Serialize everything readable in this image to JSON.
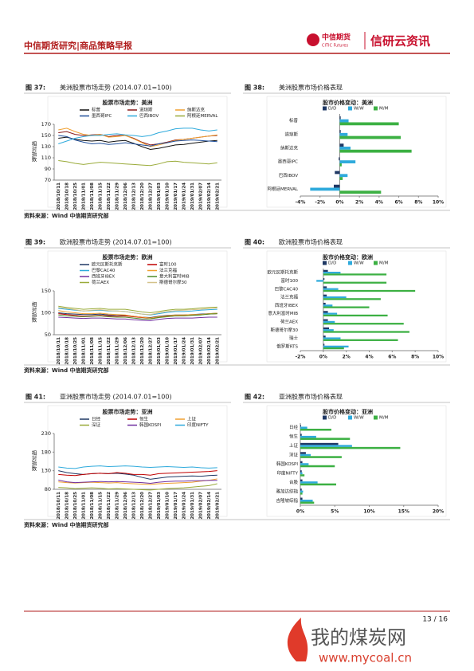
{
  "header": {
    "title": "中信期货研究|商品策略早报",
    "logo": "中信期货",
    "logo_en": "CITIC Futures",
    "brand": "信研云资讯"
  },
  "footer": {
    "page": "13 / 16"
  },
  "watermark": {
    "text": "我的煤炭网",
    "url": "www.mycoal.cn"
  },
  "chart_data": [
    {
      "type": "line",
      "figure_label": "图 37:",
      "caption": "美洲股票市场走势 (2014.07.01=100)",
      "title": "股票市场走势：美洲",
      "ylabel": "相对指数",
      "source": "资料来源：Wind 中信期货研究部",
      "categories": [
        "2018/10/11",
        "2018/10/18",
        "2018/10/25",
        "2018/11/01",
        "2018/11/08",
        "2018/11/15",
        "2018/11/22",
        "2018/11/29",
        "2018/12/06",
        "2018/12/13",
        "2018/12/20",
        "2018/12/27",
        "2019/01/03",
        "2019/01/10",
        "2019/01/17",
        "2019/01/24",
        "2019/01/31",
        "2019/02/07",
        "2019/02/14",
        "2019/02/21"
      ],
      "ylim": [
        70,
        170
      ],
      "yticks": [
        70,
        90,
        110,
        130,
        150,
        170
      ],
      "series": [
        {
          "name": "标普",
          "color": "#111111",
          "values": [
            145,
            147,
            143,
            141,
            140,
            141,
            138,
            140,
            141,
            136,
            130,
            125,
            127,
            130,
            133,
            134,
            136,
            138,
            140,
            141
          ]
        },
        {
          "name": "道琼斯",
          "color": "#8b1a1a",
          "values": [
            155,
            157,
            152,
            150,
            151,
            152,
            148,
            150,
            150,
            145,
            138,
            133,
            135,
            138,
            142,
            143,
            145,
            147,
            149,
            150
          ]
        },
        {
          "name": "纳斯达克",
          "color": "#f0a030",
          "values": [
            160,
            163,
            157,
            152,
            150,
            152,
            147,
            148,
            150,
            144,
            137,
            130,
            133,
            137,
            141,
            143,
            145,
            147,
            149,
            151
          ]
        },
        {
          "name": "墨西哥IPC",
          "color": "#1f4e9a",
          "values": [
            150,
            148,
            142,
            138,
            135,
            136,
            134,
            135,
            137,
            135,
            133,
            131,
            135,
            137,
            140,
            141,
            142,
            141,
            140,
            139
          ]
        },
        {
          "name": "巴西IBOV",
          "color": "#2eaadc",
          "values": [
            135,
            140,
            145,
            148,
            150,
            150,
            152,
            153,
            151,
            150,
            148,
            150,
            155,
            158,
            162,
            163,
            163,
            160,
            158,
            160
          ]
        },
        {
          "name": "阿根廷MERVAL",
          "color": "#9aab3a",
          "values": [
            105,
            103,
            100,
            98,
            100,
            102,
            101,
            100,
            99,
            98,
            97,
            96,
            99,
            103,
            104,
            102,
            101,
            100,
            99,
            101
          ]
        }
      ]
    },
    {
      "type": "barh",
      "figure_label": "图 38:",
      "caption": "美洲股票市场价格表现",
      "title": "股市价格变动：美洲",
      "categories": [
        "标普",
        "道琼斯",
        "纳斯达克",
        "墨西哥IPC",
        "巴西IBOV",
        "阿根廷MERVAL"
      ],
      "xlim": [
        -4,
        10
      ],
      "xticks": [
        {
          "value": -4,
          "label": "-4%"
        },
        {
          "value": -2,
          "label": "-2%"
        },
        {
          "value": 0,
          "label": "0%"
        },
        {
          "value": 2,
          "label": "2%"
        },
        {
          "value": 4,
          "label": "4%"
        },
        {
          "value": 6,
          "label": "6%"
        },
        {
          "value": 8,
          "label": "8%"
        },
        {
          "value": 10,
          "label": "10%"
        }
      ],
      "series": [
        {
          "name": "D/D",
          "color": "#1f3864",
          "values": [
            0.1,
            0.1,
            0.4,
            -0.1,
            -0.5,
            -0.6
          ]
        },
        {
          "name": "W/W",
          "color": "#2eaadc",
          "values": [
            0.9,
            0.8,
            1.1,
            1.6,
            0.8,
            -3.0
          ]
        },
        {
          "name": "M/M",
          "color": "#3cb043",
          "values": [
            6.0,
            6.2,
            7.3,
            0.2,
            0.3,
            4.2
          ]
        }
      ]
    },
    {
      "type": "line",
      "figure_label": "图 39:",
      "caption": "欧洲股票市场走势 (2014.07.01=100)",
      "title": "股票市场走势：欧洲",
      "ylabel": "相对指数",
      "source": "资料来源：Wind 中信期货研究部",
      "categories": [
        "2018/10/11",
        "2018/10/18",
        "2018/10/25",
        "2018/11/01",
        "2018/11/08",
        "2018/11/15",
        "2018/11/22",
        "2018/11/29",
        "2018/12/06",
        "2018/12/13",
        "2018/12/20",
        "2018/12/27",
        "2019/01/03",
        "2019/01/10",
        "2019/01/17",
        "2019/01/24",
        "2019/01/31",
        "2019/02/07",
        "2019/02/14",
        "2019/02/21"
      ],
      "ylim": [
        50,
        150
      ],
      "yticks": [
        50,
        100,
        150
      ],
      "series": [
        {
          "name": "欧元区斯托克斯",
          "color": "#1f3864",
          "values": [
            100,
            98,
            97,
            96,
            96,
            97,
            95,
            95,
            94,
            92,
            90,
            89,
            92,
            94,
            95,
            95,
            96,
            97,
            98,
            99
          ]
        },
        {
          "name": "富时100",
          "color": "#c00000",
          "values": [
            98,
            96,
            94,
            92,
            93,
            94,
            93,
            92,
            93,
            91,
            89,
            88,
            90,
            92,
            93,
            94,
            95,
            96,
            97,
            98
          ]
        },
        {
          "name": "巴黎CAC40",
          "color": "#2eaadc",
          "values": [
            110,
            108,
            106,
            104,
            105,
            106,
            104,
            104,
            103,
            100,
            97,
            95,
            98,
            101,
            103,
            103,
            104,
            106,
            107,
            108
          ]
        },
        {
          "name": "法兰克福",
          "color": "#f0a030",
          "values": [
            105,
            102,
            100,
            98,
            98,
            99,
            97,
            96,
            95,
            92,
            90,
            88,
            91,
            93,
            95,
            95,
            96,
            96,
            98,
            99
          ]
        },
        {
          "name": "西班牙IBEX",
          "color": "#7030a0",
          "values": [
            90,
            89,
            88,
            87,
            88,
            88,
            87,
            86,
            86,
            84,
            83,
            82,
            85,
            87,
            88,
            88,
            88,
            89,
            90,
            90
          ]
        },
        {
          "name": "意大利富时MIB",
          "color": "#4d8c2a",
          "values": [
            95,
            93,
            92,
            91,
            92,
            93,
            91,
            90,
            90,
            88,
            86,
            86,
            89,
            91,
            93,
            93,
            94,
            95,
            97,
            98
          ]
        },
        {
          "name": "荷兰AEX",
          "color": "#9aab3a",
          "values": [
            115,
            112,
            110,
            108,
            109,
            110,
            108,
            108,
            108,
            105,
            102,
            100,
            103,
            106,
            108,
            108,
            109,
            111,
            112,
            113
          ]
        },
        {
          "name": "斯德哥尔摩30",
          "color": "#d4c28a",
          "values": [
            112,
            110,
            107,
            104,
            106,
            107,
            105,
            104,
            103,
            100,
            97,
            96,
            100,
            103,
            105,
            106,
            107,
            108,
            110,
            111
          ]
        }
      ]
    },
    {
      "type": "barh",
      "figure_label": "图 40:",
      "caption": "欧洲股票市场价格表现",
      "title": "股市价格变动：欧洲",
      "categories": [
        "欧元区斯托克斯",
        "富时100",
        "巴黎CAC40",
        "法兰克福",
        "西班牙IBEX",
        "意大利富时MIB",
        "荷兰AEX",
        "斯德哥尔摩30",
        "瑞士",
        "俄罗斯RTS"
      ],
      "xlim": [
        -2,
        10
      ],
      "xticks": [
        {
          "value": -2,
          "label": "-2%"
        },
        {
          "value": 0,
          "label": "0%"
        },
        {
          "value": 2,
          "label": "2%"
        },
        {
          "value": 4,
          "label": "4%"
        },
        {
          "value": 6,
          "label": "6%"
        },
        {
          "value": 8,
          "label": "8%"
        },
        {
          "value": 10,
          "label": "10%"
        }
      ],
      "series": [
        {
          "name": "D/D",
          "color": "#1f3864",
          "values": [
            0.4,
            0.1,
            0.3,
            0.3,
            0.2,
            0.4,
            0.4,
            0.5,
            0.2,
            0.1
          ]
        },
        {
          "name": "W/W",
          "color": "#2eaadc",
          "values": [
            1.5,
            -0.6,
            1.3,
            2.0,
            0.8,
            1.2,
            1.0,
            0.9,
            1.5,
            2.2
          ]
        },
        {
          "name": "M/M",
          "color": "#3cb043",
          "values": [
            5.5,
            5.5,
            8.0,
            5.0,
            4.0,
            5.6,
            7.0,
            7.5,
            6.5,
            1.8
          ]
        }
      ]
    },
    {
      "type": "line",
      "figure_label": "图 41:",
      "caption": "亚洲股票市场走势 (2014.07.01=100)",
      "title": "股票市场走势：亚洲",
      "ylabel": "相对指数",
      "source": "资料来源：Wind 中信期货研究部",
      "categories": [
        "2018/10/11",
        "2018/10/18",
        "2018/10/25",
        "2018/11/01",
        "2018/11/08",
        "2018/11/15",
        "2018/11/22",
        "2018/11/29",
        "2018/12/06",
        "2018/12/13",
        "2018/12/20",
        "2018/12/27",
        "2019/01/03",
        "2019/01/10",
        "2019/01/17",
        "2019/01/24",
        "2019/01/31",
        "2019/02/07",
        "2019/02/14",
        "2019/02/21"
      ],
      "ylim": [
        80,
        230
      ],
      "yticks": [
        80,
        130,
        180,
        230
      ],
      "series": [
        {
          "name": "日经",
          "color": "#1f3864",
          "values": [
            130,
            125,
            122,
            120,
            122,
            123,
            122,
            123,
            121,
            118,
            112,
            107,
            110,
            113,
            114,
            115,
            116,
            115,
            117,
            118
          ]
        },
        {
          "name": "恒生",
          "color": "#c00000",
          "values": [
            120,
            118,
            117,
            120,
            122,
            123,
            122,
            125,
            123,
            120,
            120,
            118,
            122,
            123,
            124,
            125,
            126,
            127,
            128,
            130
          ]
        },
        {
          "name": "上证",
          "color": "#f0a030",
          "values": [
            100,
            98,
            97,
            98,
            99,
            98,
            97,
            98,
            96,
            95,
            94,
            93,
            95,
            96,
            97,
            98,
            99,
            102,
            104,
            108
          ]
        },
        {
          "name": "深证",
          "color": "#9aab3a",
          "values": [
            85,
            84,
            82,
            83,
            84,
            83,
            81,
            82,
            81,
            80,
            79,
            78,
            80,
            82,
            83,
            84,
            86,
            88,
            90,
            95
          ]
        },
        {
          "name": "韩国KOSPI",
          "color": "#7030a0",
          "values": [
            105,
            100,
            98,
            99,
            100,
            101,
            100,
            101,
            100,
            99,
            98,
            96,
            99,
            101,
            102,
            102,
            103,
            103,
            104,
            104
          ]
        },
        {
          "name": "印度NIFTY",
          "color": "#2eaadc",
          "values": [
            140,
            137,
            136,
            140,
            142,
            143,
            141,
            142,
            143,
            142,
            140,
            139,
            140,
            141,
            140,
            139,
            140,
            138,
            137,
            138
          ]
        }
      ]
    },
    {
      "type": "barh",
      "figure_label": "图 42:",
      "caption": "亚洲股票市场价格表现",
      "title": "股市价格变动：亚洲",
      "categories": [
        "日经",
        "恒生",
        "上证",
        "深证",
        "韩国KOSPI",
        "印度NIFTY",
        "台股",
        "雅加达综指",
        "吉隆坡综指"
      ],
      "xlim": [
        0,
        20
      ],
      "xticks": [
        {
          "value": 0,
          "label": "0%"
        },
        {
          "value": 5,
          "label": "5%"
        },
        {
          "value": 10,
          "label": "10%"
        },
        {
          "value": 15,
          "label": "15%"
        },
        {
          "value": 20,
          "label": "20%"
        }
      ],
      "series": [
        {
          "name": "D/D",
          "color": "#1f3864",
          "values": [
            0.1,
            0.2,
            5.5,
            0.8,
            0.3,
            0.2,
            0.3,
            0.2,
            0.3
          ]
        },
        {
          "name": "W/W",
          "color": "#2eaadc",
          "values": [
            1.0,
            2.3,
            7.5,
            1.5,
            1.2,
            0.3,
            2.5,
            0.4,
            1.8
          ]
        },
        {
          "name": "M/M",
          "color": "#3cb043",
          "values": [
            4.5,
            7.2,
            14.5,
            6.0,
            5.0,
            0.6,
            5.2,
            0.3,
            2.0
          ]
        }
      ]
    }
  ]
}
